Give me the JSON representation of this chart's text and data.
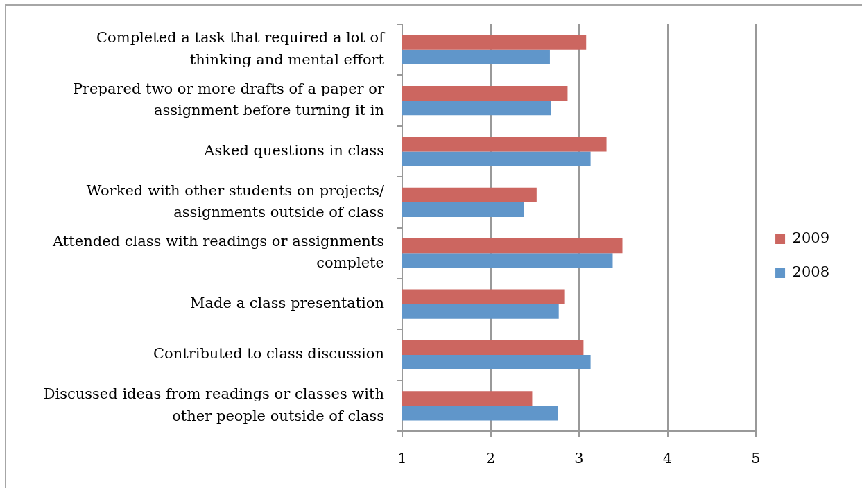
{
  "chart_data": {
    "type": "bar",
    "orientation": "horizontal",
    "categories": [
      "Completed a task that required a lot of thinking and mental effort",
      "Prepared two or more drafts of a paper or assignment before turning it in",
      "Asked questions in class",
      "Worked with other students on projects/ assignments outside of class",
      "Attended class with readings or assignments complete",
      "Made a class presentation",
      "Contributed to class discussion",
      "Discussed ideas from readings or classes with other people outside of class"
    ],
    "series": [
      {
        "name": "2009",
        "color": "#cc6660",
        "values": [
          3.08,
          2.87,
          3.31,
          2.52,
          3.49,
          2.84,
          3.05,
          2.47
        ]
      },
      {
        "name": "2008",
        "color": "#6096ca",
        "values": [
          2.67,
          2.68,
          3.13,
          2.38,
          3.38,
          2.77,
          3.13,
          2.76
        ]
      }
    ],
    "xlim": [
      1,
      5
    ],
    "xticks": [
      1,
      2,
      3,
      4,
      5
    ],
    "grid": "x",
    "legend": "right"
  }
}
